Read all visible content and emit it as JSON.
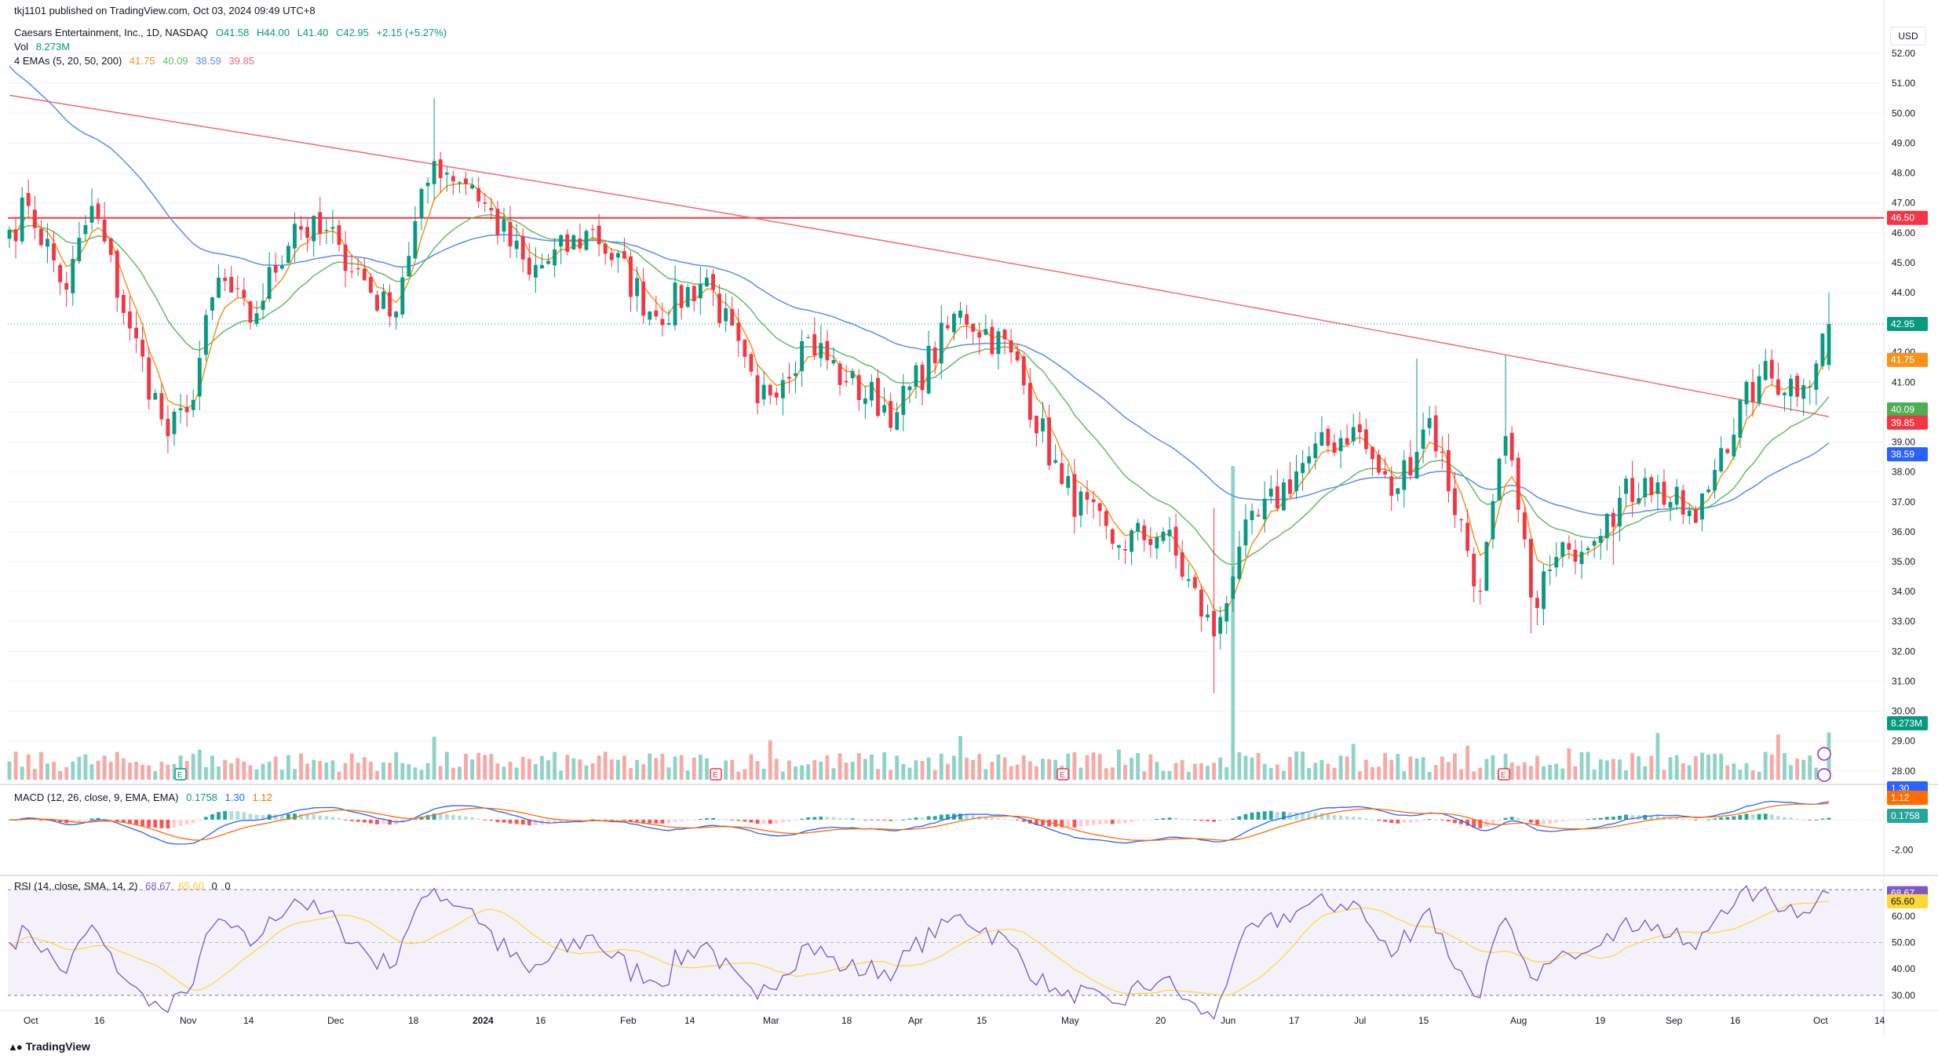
{
  "publisher_line": "tkj1101 published on TradingView.com, Oct 03, 2024 09:49 UTC+8",
  "legend": {
    "symbol": "Caesars Entertainment, Inc., 1D, NASDAQ",
    "open": "O41.58",
    "high": "H44.00",
    "low": "L41.40",
    "close": "C42.95",
    "change": "+2.15 (+5.27%)",
    "vol_label": "Vol",
    "vol_value": "8.273M",
    "ema_label": "4 EMAs (5, 20, 50, 200)",
    "ema5": "41.75",
    "ema20": "40.09",
    "ema50": "38.59",
    "ema200": "39.85",
    "macd_label": "MACD (12, 26, close, 9, EMA, EMA)",
    "macd_hist": "0.1758",
    "macd_line": "1.30",
    "macd_signal": "1.12",
    "rsi_label": "RSI (14, close, SMA, 14, 2)",
    "rsi_value": "68.67",
    "rsi_sma": "65.60",
    "rsi_extra1": "0",
    "rsi_extra2": "0"
  },
  "currency_button": "USD",
  "footer_brand": "TradingView",
  "colors": {
    "up": "#089981",
    "down": "#f23645",
    "vol_up": "#8fd3c7",
    "vol_down": "#f7a9a7",
    "ema5": "#f7931a",
    "ema20": "#66bb6a",
    "ema50": "#5b8def",
    "ema200": "#ef6b74",
    "macd_line": "#2962ff",
    "macd_signal": "#ff6d00",
    "rsi_line": "#7e57c2",
    "rsi_sma": "#fdd835",
    "hline": "#f23645"
  },
  "chart_data": {
    "type": "candlestick",
    "y_axis_price": {
      "ticks": [
        "52.00",
        "51.00",
        "50.00",
        "49.00",
        "48.00",
        "47.00",
        "46.00",
        "45.00",
        "44.00",
        "43.00",
        "42.00",
        "41.00",
        "40.00",
        "39.00",
        "38.00",
        "37.00",
        "36.00",
        "35.00",
        "34.00",
        "33.00",
        "32.00",
        "31.00",
        "30.00",
        "29.00",
        "28.00"
      ],
      "range": [
        27.6,
        53.0
      ]
    },
    "horizontal_line": {
      "value": 46.5,
      "label": "46.50"
    },
    "last_close_label": "42.95",
    "ema_labels": {
      "ema5": "41.75",
      "ema20": "40.09",
      "ema200": "39.85",
      "ema50": "38.59"
    },
    "volume_label": "8.273M",
    "x_axis_labels": [
      "Oct",
      "16",
      "Nov",
      "14",
      "Dec",
      "18",
      "2024",
      "16",
      "Feb",
      "14",
      "Mar",
      "18",
      "Apr",
      "15",
      "May",
      "20",
      "Jun",
      "17",
      "Jul",
      "15",
      "Aug",
      "19",
      "Sep",
      "16",
      "Oct",
      "14"
    ],
    "earnings_markers": [
      "E",
      "E",
      "E",
      "E"
    ],
    "anchors": [
      {
        "i": 0,
        "p": 46.1
      },
      {
        "i": 3,
        "p": 46.9
      },
      {
        "i": 9,
        "p": 44.1
      },
      {
        "i": 13,
        "p": 46.9
      },
      {
        "i": 19,
        "p": 42.8
      },
      {
        "i": 25,
        "p": 39.2
      },
      {
        "i": 28,
        "p": 40.0
      },
      {
        "i": 33,
        "p": 44.5
      },
      {
        "i": 38,
        "p": 43.0
      },
      {
        "i": 45,
        "p": 46.3
      },
      {
        "i": 52,
        "p": 45.6
      },
      {
        "i": 60,
        "p": 43.2
      },
      {
        "i": 67,
        "p": 48.4
      },
      {
        "i": 73,
        "p": 47.6
      },
      {
        "i": 82,
        "p": 44.6
      },
      {
        "i": 92,
        "p": 46.1
      },
      {
        "i": 102,
        "p": 43.2
      },
      {
        "i": 110,
        "p": 44.5
      },
      {
        "i": 118,
        "p": 40.3
      },
      {
        "i": 126,
        "p": 42.5
      },
      {
        "i": 132,
        "p": 41.0
      },
      {
        "i": 140,
        "p": 40.0
      },
      {
        "i": 150,
        "p": 43.4
      },
      {
        "i": 158,
        "p": 42.0
      },
      {
        "i": 166,
        "p": 37.6
      },
      {
        "i": 174,
        "p": 35.6
      },
      {
        "i": 182,
        "p": 36.0
      },
      {
        "i": 190,
        "p": 32.5
      },
      {
        "i": 194,
        "p": 35.5
      },
      {
        "i": 204,
        "p": 38.3
      },
      {
        "i": 212,
        "p": 39.5
      },
      {
        "i": 218,
        "p": 37.2
      },
      {
        "i": 224,
        "p": 39.8
      },
      {
        "i": 232,
        "p": 34.0
      },
      {
        "i": 236,
        "p": 39.2
      },
      {
        "i": 240,
        "p": 33.8
      },
      {
        "i": 246,
        "p": 35.4
      },
      {
        "i": 252,
        "p": 36.6
      },
      {
        "i": 258,
        "p": 37.8
      },
      {
        "i": 266,
        "p": 36.3
      },
      {
        "i": 270,
        "p": 38.8
      },
      {
        "i": 276,
        "p": 41.2
      },
      {
        "i": 283,
        "p": 40.9
      },
      {
        "i": 287,
        "p": 42.95
      }
    ],
    "macd_axis_ticks": [
      "-2.00"
    ],
    "macd_labels": {
      "line": "1.30",
      "signal": "1.12",
      "hist": "0.1758"
    },
    "rsi_axis_ticks": [
      "60.00",
      "50.00",
      "40.00",
      "30.00"
    ],
    "rsi_levels": {
      "upper": 70,
      "middle": 50,
      "lower": 30
    },
    "rsi_labels": {
      "rsi": "68.67",
      "sma": "65.60"
    }
  }
}
